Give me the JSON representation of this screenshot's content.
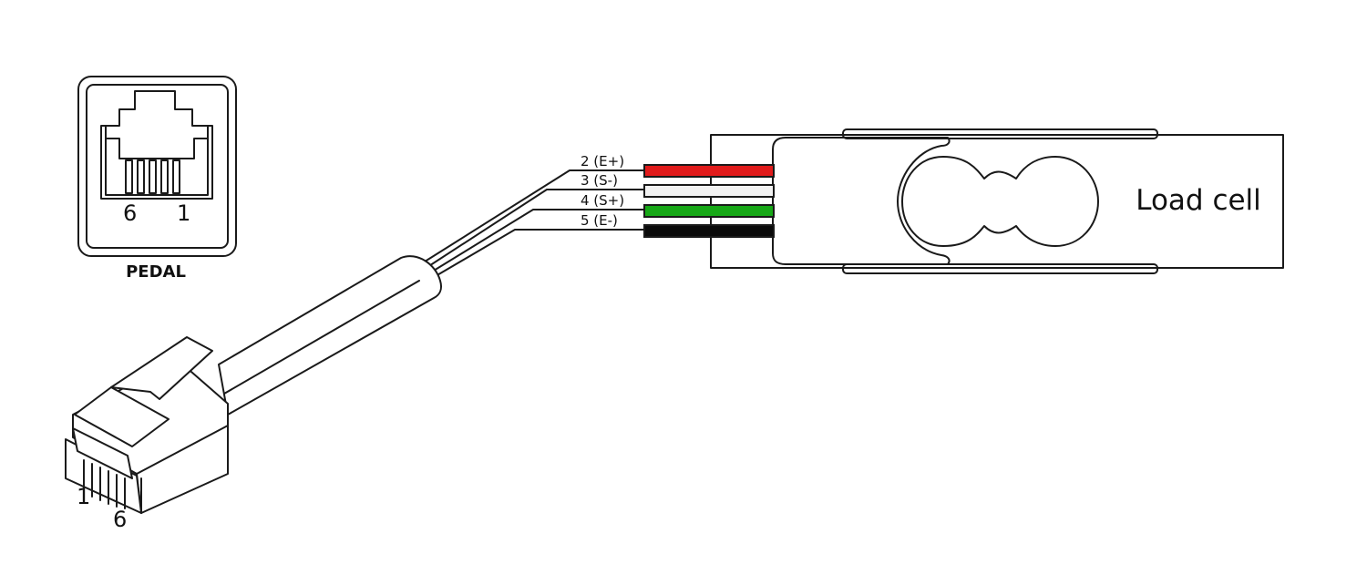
{
  "pedal": {
    "label": "PEDAL",
    "pin_left": "6",
    "pin_right": "1"
  },
  "plug": {
    "pin_first": "1",
    "pin_last": "6"
  },
  "wires": [
    {
      "label": "2 (E+)",
      "color": "#e11b1b"
    },
    {
      "label": "3 (S-)",
      "color": "#f2f2f2"
    },
    {
      "label": "4 (S+)",
      "color": "#17a817"
    },
    {
      "label": "5 (E-)",
      "color": "#0a0a0a"
    }
  ],
  "load_cell": {
    "label": "Load cell",
    "body_color": "#ebebeb"
  }
}
